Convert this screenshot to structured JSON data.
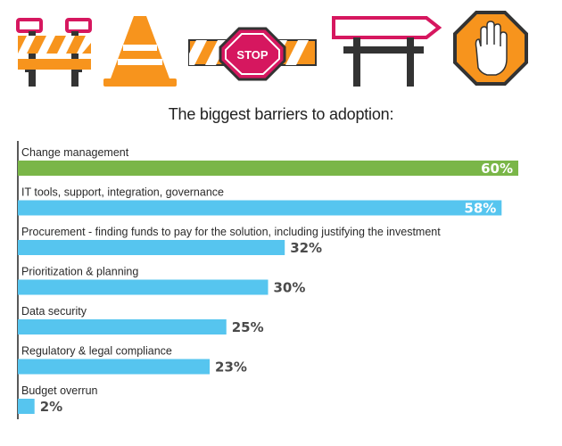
{
  "colors": {
    "green": "#7ab648",
    "blue": "#56c5ef",
    "orange": "#f7941d",
    "magenta": "#d6175f",
    "dark": "#333333",
    "value_text_dark": "#4a4a4a",
    "value_text_light": "#ffffff"
  },
  "icons": [
    "barricade-icon",
    "traffic-cone-icon",
    "stop-barrier-icon",
    "road-sign-icon",
    "stop-hand-icon"
  ],
  "stop_sign_text": "STOP",
  "chart_data": {
    "type": "bar",
    "orientation": "horizontal",
    "title": "The biggest barriers to adoption:",
    "categories": [
      "Change management",
      "IT tools, support, integration, governance",
      "Procurement - finding funds to pay for the solution, including justifying the investment",
      "Prioritization & planning",
      "Data security",
      "Regulatory & legal compliance",
      "Budget overrun"
    ],
    "values": [
      60,
      58,
      32,
      30,
      25,
      23,
      2
    ],
    "value_labels": [
      "60%",
      "58%",
      "32%",
      "30%",
      "25%",
      "23%",
      "2%"
    ],
    "bar_colors": [
      "green",
      "blue",
      "blue",
      "blue",
      "blue",
      "blue",
      "blue"
    ],
    "xlim": [
      0,
      60
    ],
    "xlabel": "",
    "ylabel": "",
    "grid": false,
    "legend": "none"
  }
}
